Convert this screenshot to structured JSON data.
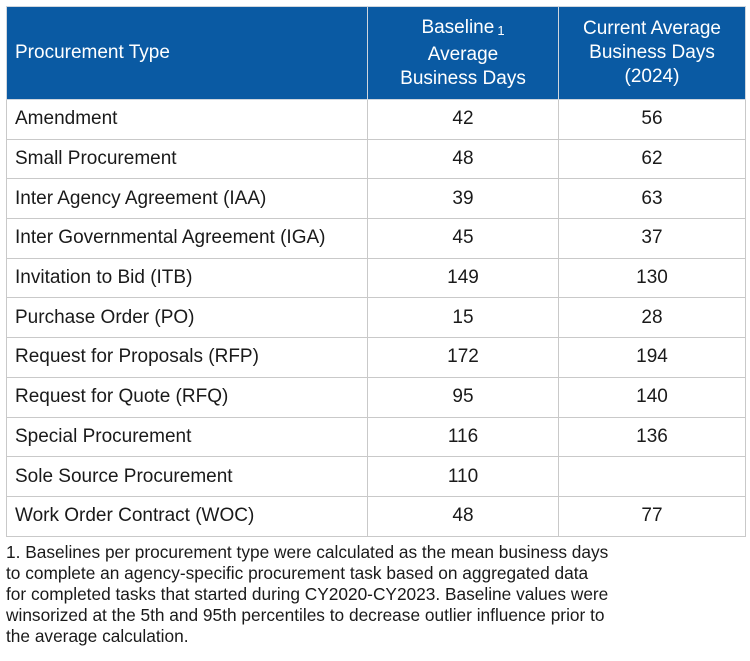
{
  "table": {
    "headers": {
      "type": "Procurement Type",
      "baseline_line1": "Baseline",
      "baseline_marker": "1",
      "baseline_line2": "Average",
      "baseline_line3": "Business Days",
      "current_line1": "Current Average",
      "current_line2": "Business Days",
      "current_line3": "(2024)"
    },
    "rows": [
      {
        "type": "Amendment",
        "baseline": "42",
        "current": "56"
      },
      {
        "type": "Small Procurement",
        "baseline": "48",
        "current": "62"
      },
      {
        "type": "Inter Agency Agreement (IAA)",
        "baseline": "39",
        "current": "63"
      },
      {
        "type": "Inter Governmental Agreement (IGA)",
        "baseline": "45",
        "current": "37"
      },
      {
        "type": "Invitation to Bid (ITB)",
        "baseline": "149",
        "current": "130"
      },
      {
        "type": "Purchase Order (PO)",
        "baseline": "15",
        "current": "28"
      },
      {
        "type": "Request for Proposals (RFP)",
        "baseline": "172",
        "current": "194"
      },
      {
        "type": "Request for Quote (RFQ)",
        "baseline": "95",
        "current": "140"
      },
      {
        "type": "Special Procurement",
        "baseline": "116",
        "current": "136"
      },
      {
        "type": "Sole Source Procurement",
        "baseline": "110",
        "current": ""
      },
      {
        "type": "Work Order Contract (WOC)",
        "baseline": "48",
        "current": "77"
      }
    ]
  },
  "footnote": {
    "line1": "1. Baselines per procurement type were calculated as the mean business days",
    "line2": "to complete an agency-specific procurement task based on aggregated data",
    "line3": "for completed tasks that started during CY2020-CY2023. Baseline values were",
    "line4": "winsorized at the 5th and 95th percentiles to decrease outlier influence prior to",
    "line5": "the average calculation."
  },
  "colors": {
    "header_background": "#0a5aa3",
    "header_text": "#ffffff",
    "grid": "#c9c9c9"
  }
}
